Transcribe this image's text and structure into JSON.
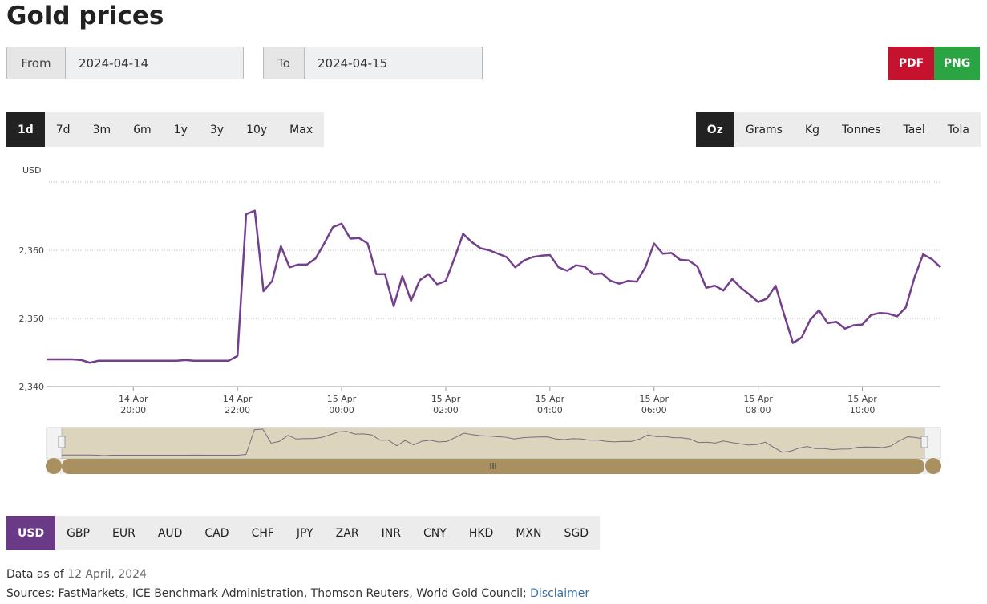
{
  "header": {
    "title": "Gold prices"
  },
  "dates": {
    "from_label": "From",
    "from_value": "2024-04-14",
    "to_label": "To",
    "to_value": "2024-04-15"
  },
  "exports": [
    {
      "label": "PDF",
      "color": "#c4122f"
    },
    {
      "label": "PNG",
      "color": "#2ba544"
    }
  ],
  "ranges": [
    {
      "label": "1d",
      "selected": true
    },
    {
      "label": "7d"
    },
    {
      "label": "3m"
    },
    {
      "label": "6m"
    },
    {
      "label": "1y"
    },
    {
      "label": "3y"
    },
    {
      "label": "10y"
    },
    {
      "label": "Max"
    }
  ],
  "units": [
    {
      "label": "Oz",
      "selected": true
    },
    {
      "label": "Grams"
    },
    {
      "label": "Kg"
    },
    {
      "label": "Tonnes"
    },
    {
      "label": "Tael"
    },
    {
      "label": "Tola"
    }
  ],
  "currencies": [
    {
      "label": "USD",
      "selected": true
    },
    {
      "label": "GBP"
    },
    {
      "label": "EUR"
    },
    {
      "label": "AUD"
    },
    {
      "label": "CAD"
    },
    {
      "label": "CHF"
    },
    {
      "label": "JPY"
    },
    {
      "label": "ZAR"
    },
    {
      "label": "INR"
    },
    {
      "label": "CNY"
    },
    {
      "label": "HKD"
    },
    {
      "label": "MXN"
    },
    {
      "label": "SGD"
    }
  ],
  "footer": {
    "data_as_of": "Data as of",
    "date": "12 April, 2024",
    "sources": "Sources: FastMarkets, ICE Benchmark Administration, Thomson Reuters, World Gold Council;",
    "disclaimer": "Disclaimer"
  },
  "chart_data": {
    "type": "line",
    "y_label": "USD",
    "color": "#743f8c",
    "grid": true,
    "x": [
      1100,
      1110,
      1120,
      1130,
      1140,
      1150,
      1160,
      1170,
      1180,
      1190,
      1200,
      1210,
      1220,
      1230,
      1240,
      1250,
      1260,
      1270,
      1280,
      1290,
      1300,
      1310,
      1320,
      1330,
      1340,
      1350,
      1360,
      1370,
      1380,
      1390,
      1400,
      1410,
      1420,
      1430,
      1440,
      1450,
      1460,
      1470,
      1480,
      1490,
      1500,
      1510,
      1520,
      1530,
      1540,
      1550,
      1560,
      1570,
      1580,
      1590,
      1600,
      1610,
      1620,
      1630,
      1640,
      1650,
      1660,
      1670,
      1680,
      1690,
      1700,
      1710,
      1720,
      1730,
      1740,
      1750,
      1760,
      1770,
      1780,
      1790,
      1800,
      1810,
      1820,
      1830,
      1840,
      1850,
      1860,
      1870,
      1880,
      1890,
      1900,
      1910,
      1920,
      1930,
      1940,
      1950,
      1960,
      1970,
      1980,
      1990,
      2000,
      2010,
      2020,
      2030,
      2040,
      2050,
      2060,
      2070,
      2080,
      2090,
      2100,
      2110,
      2120,
      2130
    ],
    "values": [
      2344,
      2344,
      2344,
      2344,
      2343.9,
      2343.5,
      2343.8,
      2343.8,
      2343.8,
      2343.8,
      2343.8,
      2343.8,
      2343.8,
      2343.8,
      2343.8,
      2343.8,
      2343.9,
      2343.8,
      2343.8,
      2343.8,
      2343.8,
      2343.8,
      2344.5,
      2365.3,
      2365.8,
      2354,
      2355.5,
      2360.6,
      2357.5,
      2357.9,
      2357.9,
      2358.8,
      2361,
      2363.4,
      2363.9,
      2361.7,
      2361.8,
      2361,
      2356.5,
      2356.5,
      2351.8,
      2356.2,
      2352.6,
      2355.6,
      2356.5,
      2355,
      2355.5,
      2358.8,
      2362.4,
      2361.2,
      2360.3,
      2360,
      2359.5,
      2359,
      2357.5,
      2358.5,
      2359,
      2359.2,
      2359.3,
      2357.5,
      2357,
      2357.8,
      2357.6,
      2356.5,
      2356.6,
      2355.5,
      2355.1,
      2355.5,
      2355.4,
      2357.5,
      2361,
      2359.5,
      2359.6,
      2358.6,
      2358.5,
      2357.6,
      2354.5,
      2354.8,
      2354.1,
      2355.8,
      2354.5,
      2353.5,
      2352.4,
      2352.9,
      2354.8,
      2350.5,
      2346.4,
      2347.2,
      2349.8,
      2351.2,
      2349.3,
      2349.5,
      2348.5,
      2349,
      2349.1,
      2350.5,
      2350.8,
      2350.7,
      2350.3,
      2351.6,
      2356,
      2359.4,
      2358.7,
      2357.5
    ],
    "xlim": [
      1100,
      2130
    ],
    "xticks": [
      {
        "value": 1200,
        "label": [
          "14 Apr",
          "20:00"
        ]
      },
      {
        "value": 1320,
        "label": [
          "14 Apr",
          "22:00"
        ]
      },
      {
        "value": 1440,
        "label": [
          "15 Apr",
          "00:00"
        ]
      },
      {
        "value": 1560,
        "label": [
          "15 Apr",
          "02:00"
        ]
      },
      {
        "value": 1680,
        "label": [
          "15 Apr",
          "04:00"
        ]
      },
      {
        "value": 1800,
        "label": [
          "15 Apr",
          "06:00"
        ]
      },
      {
        "value": 1920,
        "label": [
          "15 Apr",
          "08:00"
        ]
      },
      {
        "value": 2040,
        "label": [
          "15 Apr",
          "10:00"
        ]
      }
    ],
    "ylim": [
      2340,
      2370
    ],
    "yticks": [
      {
        "value": 2340,
        "label": "2,340"
      },
      {
        "value": 2350,
        "label": "2,350"
      },
      {
        "value": 2360,
        "label": "2,360"
      },
      {
        "value": 2370,
        "label": ""
      }
    ]
  }
}
